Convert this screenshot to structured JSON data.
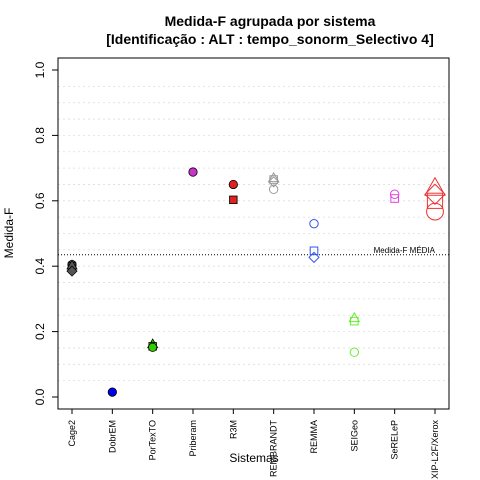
{
  "chart_data": {
    "type": "scatter",
    "title": "Medida-F agrupada por sistema",
    "subtitle": "[Identificação : ALT : tempo_sonorm_Selectivo 4]",
    "xlabel": "Sistemas",
    "ylabel": "Medida-F",
    "ylim": [
      0,
      1
    ],
    "y_ticks": [
      "0.0",
      "0.2",
      "0.4",
      "0.6",
      "0.8",
      "1.0"
    ],
    "grid": "horizontal dotted",
    "categories": [
      "Cage2",
      "DobrEM",
      "PorTexTO",
      "Priberam",
      "R3M",
      "REMBRANDT",
      "REMMA",
      "SEIGeo",
      "SeRELeP",
      "XIP-L2F/Xerox"
    ],
    "reference_line": {
      "label": "Medida-F MÉDIA",
      "value": 0.435
    },
    "series": [
      {
        "category": "Cage2",
        "color": "#555555",
        "filled": true,
        "points": [
          {
            "shape": "circle",
            "y": 0.405
          },
          {
            "shape": "square",
            "y": 0.4
          },
          {
            "shape": "triangle",
            "y": 0.403
          },
          {
            "shape": "diamond",
            "y": 0.385
          }
        ]
      },
      {
        "category": "DobrEM",
        "color": "#0000ee",
        "filled": true,
        "points": [
          {
            "shape": "circle",
            "y": 0.015
          }
        ]
      },
      {
        "category": "PorTexTO",
        "color": "#33cc00",
        "filled": true,
        "points": [
          {
            "shape": "triangle",
            "y": 0.162
          },
          {
            "shape": "square",
            "y": 0.155
          },
          {
            "shape": "circle",
            "y": 0.152
          }
        ]
      },
      {
        "category": "Priberam",
        "color": "#cc33cc",
        "filled": true,
        "points": [
          {
            "shape": "circle",
            "y": 0.688
          }
        ]
      },
      {
        "category": "R3M",
        "color": "#dd2222",
        "filled": true,
        "points": [
          {
            "shape": "circle",
            "y": 0.65
          },
          {
            "shape": "square",
            "y": 0.603
          }
        ]
      },
      {
        "category": "REMBRANDT",
        "color": "#999999",
        "filled": false,
        "points": [
          {
            "shape": "triangle",
            "y": 0.67
          },
          {
            "shape": "square",
            "y": 0.665
          },
          {
            "shape": "diamond",
            "y": 0.658
          },
          {
            "shape": "circle",
            "y": 0.635
          }
        ]
      },
      {
        "category": "REMMA",
        "color": "#3355ee",
        "filled": false,
        "points": [
          {
            "shape": "circle",
            "y": 0.53
          },
          {
            "shape": "square",
            "y": 0.447
          },
          {
            "shape": "diamond",
            "y": 0.427
          }
        ]
      },
      {
        "category": "SEIGeo",
        "color": "#66ee33",
        "filled": false,
        "points": [
          {
            "shape": "triangle",
            "y": 0.242
          },
          {
            "shape": "square",
            "y": 0.232
          },
          {
            "shape": "circle",
            "y": 0.137
          }
        ]
      },
      {
        "category": "SeRELeP",
        "color": "#dd44dd",
        "filled": false,
        "points": [
          {
            "shape": "circle",
            "y": 0.62
          },
          {
            "shape": "square",
            "y": 0.607
          }
        ]
      },
      {
        "category": "XIP-L2F/Xerox",
        "color": "#ee3333",
        "filled": false,
        "large": true,
        "points": [
          {
            "shape": "triangle",
            "y": 0.64
          },
          {
            "shape": "diamond",
            "y": 0.62
          },
          {
            "shape": "square",
            "y": 0.6
          },
          {
            "shape": "circle",
            "y": 0.567
          }
        ]
      }
    ]
  }
}
